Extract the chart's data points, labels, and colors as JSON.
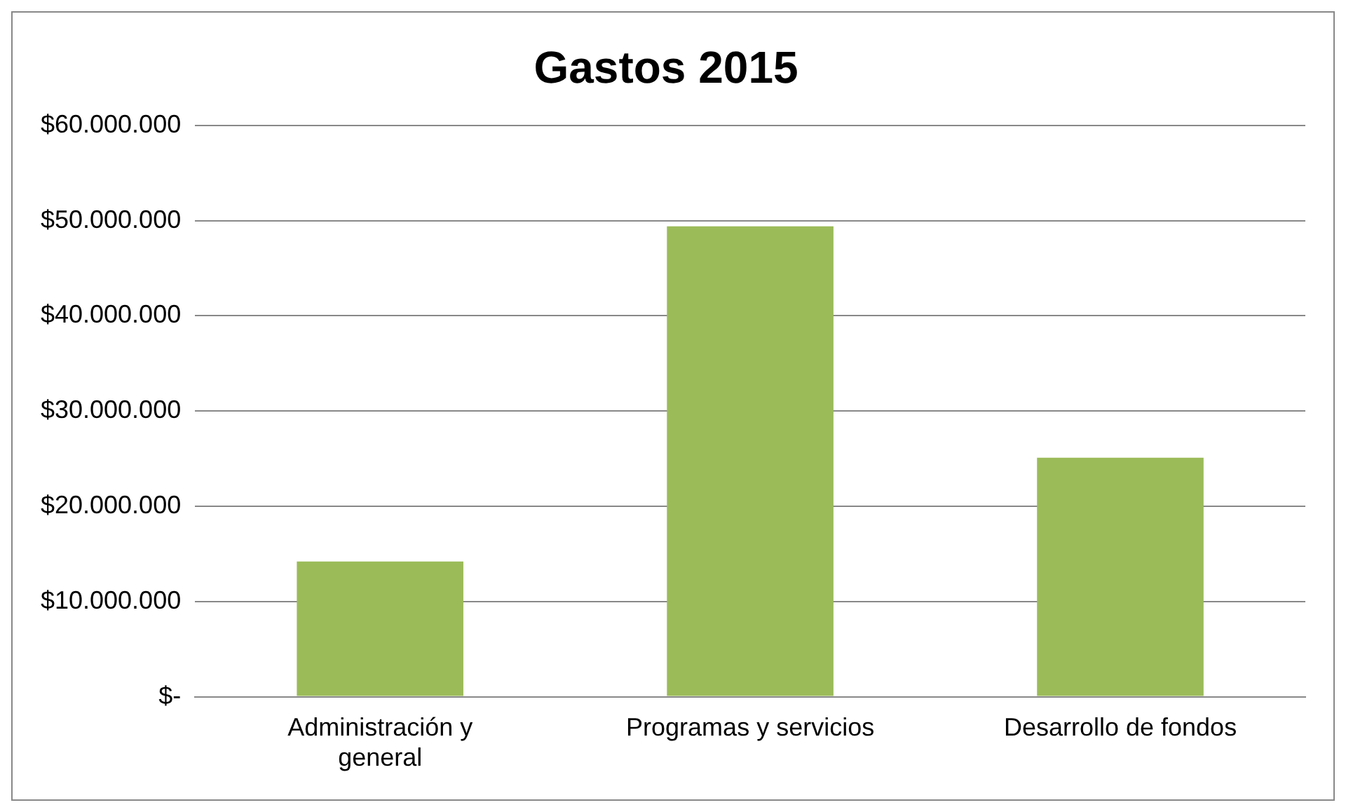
{
  "chart_data": {
    "type": "bar",
    "title": "Gastos 2015",
    "categories": [
      "Administración y general",
      "Programas y servicios",
      "Desarrollo de fondos"
    ],
    "values": [
      14200000,
      49400000,
      25100000
    ],
    "color": "#9bbb59",
    "ylim": [
      0,
      60000000
    ],
    "yticks": [
      {
        "value": 0,
        "label": "$-"
      },
      {
        "value": 10000000,
        "label": "$10.000.000"
      },
      {
        "value": 20000000,
        "label": "$20.000.000"
      },
      {
        "value": 30000000,
        "label": "$30.000.000"
      },
      {
        "value": 40000000,
        "label": "$40.000.000"
      },
      {
        "value": 50000000,
        "label": "$50.000.000"
      },
      {
        "value": 60000000,
        "label": "$60.000.000"
      }
    ],
    "grid": "y",
    "legend": false
  }
}
